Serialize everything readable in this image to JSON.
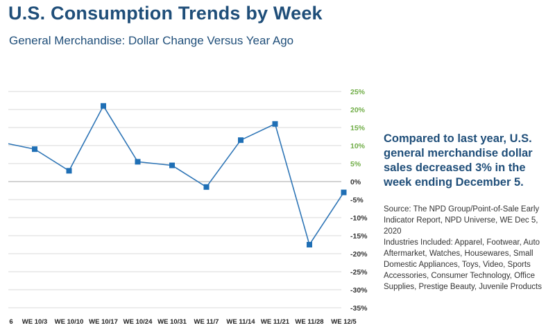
{
  "header": {
    "title": "U.S. Consumption Trends by Week",
    "subtitle": "General Merchandise: Dollar Change Versus Year Ago"
  },
  "callout": {
    "text": "Compared to last year, U.S. general merchandise dollar sales decreased 3% in the week ending December 5."
  },
  "source": {
    "line1": "Source: The NPD Group/Point-of-Sale Early Indicator Report, NPD Universe, WE Dec 5, 2020",
    "line2": "Industries Included: Apparel, Footwear, Auto Aftermarket, Watches, Housewares, Small Domestic Appliances, Toys, Video, Sports Accessories, Consumer Technology, Office Supplies, Prestige Beauty, Juvenile Products"
  },
  "colors": {
    "title": "#1f4e79",
    "line": "#2e75b6",
    "marker": "#1f6fb5",
    "positive_tick": "#70ad47",
    "negative_tick": "#333333",
    "grid": "#d9d9d9"
  },
  "chart_data": {
    "type": "line",
    "title": "General Merchandise: Dollar Change Versus Year Ago",
    "xlabel": "",
    "ylabel": "",
    "ylim": [
      -35,
      25
    ],
    "y_ticks": [
      25,
      20,
      15,
      10,
      5,
      0,
      -5,
      -10,
      -15,
      -20,
      -25,
      -30,
      -35
    ],
    "y_tick_labels": [
      "25%",
      "20%",
      "15%",
      "10%",
      "5%",
      "0%",
      "-5%",
      "-10%",
      "-15%",
      "-20%",
      "-25%",
      "-30%",
      "-35%"
    ],
    "grid": true,
    "axis_side": "right",
    "leading_partial": {
      "label": "6",
      "value": 10.5
    },
    "categories": [
      "WE 10/3",
      "WE 10/10",
      "WE 10/17",
      "WE 10/24",
      "WE 10/31",
      "WE 11/7",
      "WE 11/14",
      "WE 11/21",
      "WE 11/28",
      "WE 12/5"
    ],
    "series": [
      {
        "name": "Dollar Change Versus Year Ago",
        "values": [
          9,
          3,
          21,
          5.5,
          4.5,
          -1.5,
          11.5,
          16,
          -17.5,
          -3
        ]
      }
    ]
  }
}
